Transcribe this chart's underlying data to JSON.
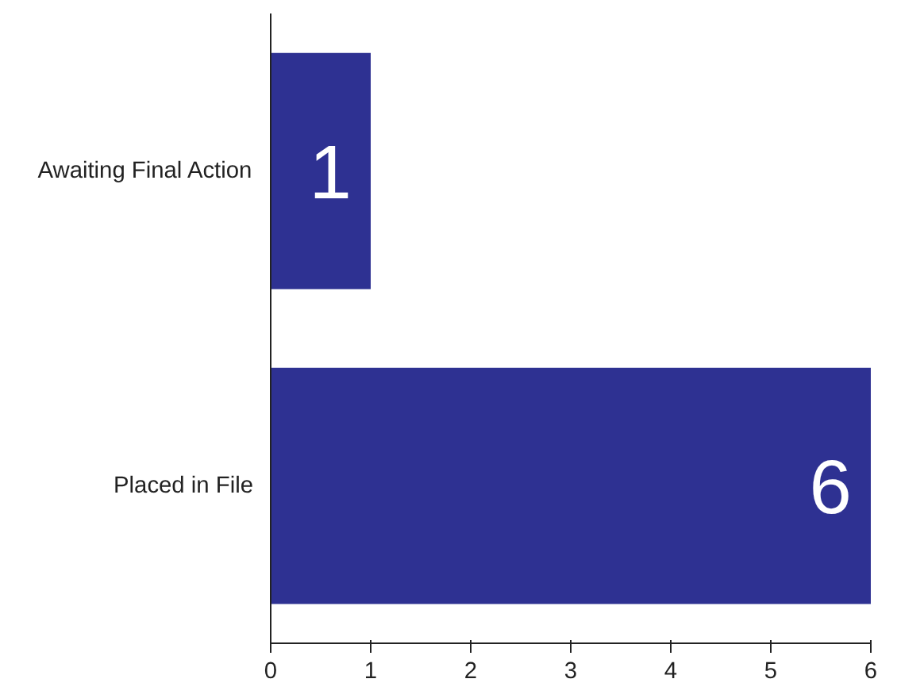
{
  "chart_data": {
    "type": "bar",
    "orientation": "horizontal",
    "categories": [
      "Awaiting Final Action",
      "Placed in File"
    ],
    "values": [
      1,
      6
    ],
    "color": "#2e3192",
    "xlim": [
      0,
      6
    ],
    "xticks": [
      0,
      1,
      2,
      3,
      4,
      5,
      6
    ],
    "grid": false,
    "data_labels": true
  }
}
